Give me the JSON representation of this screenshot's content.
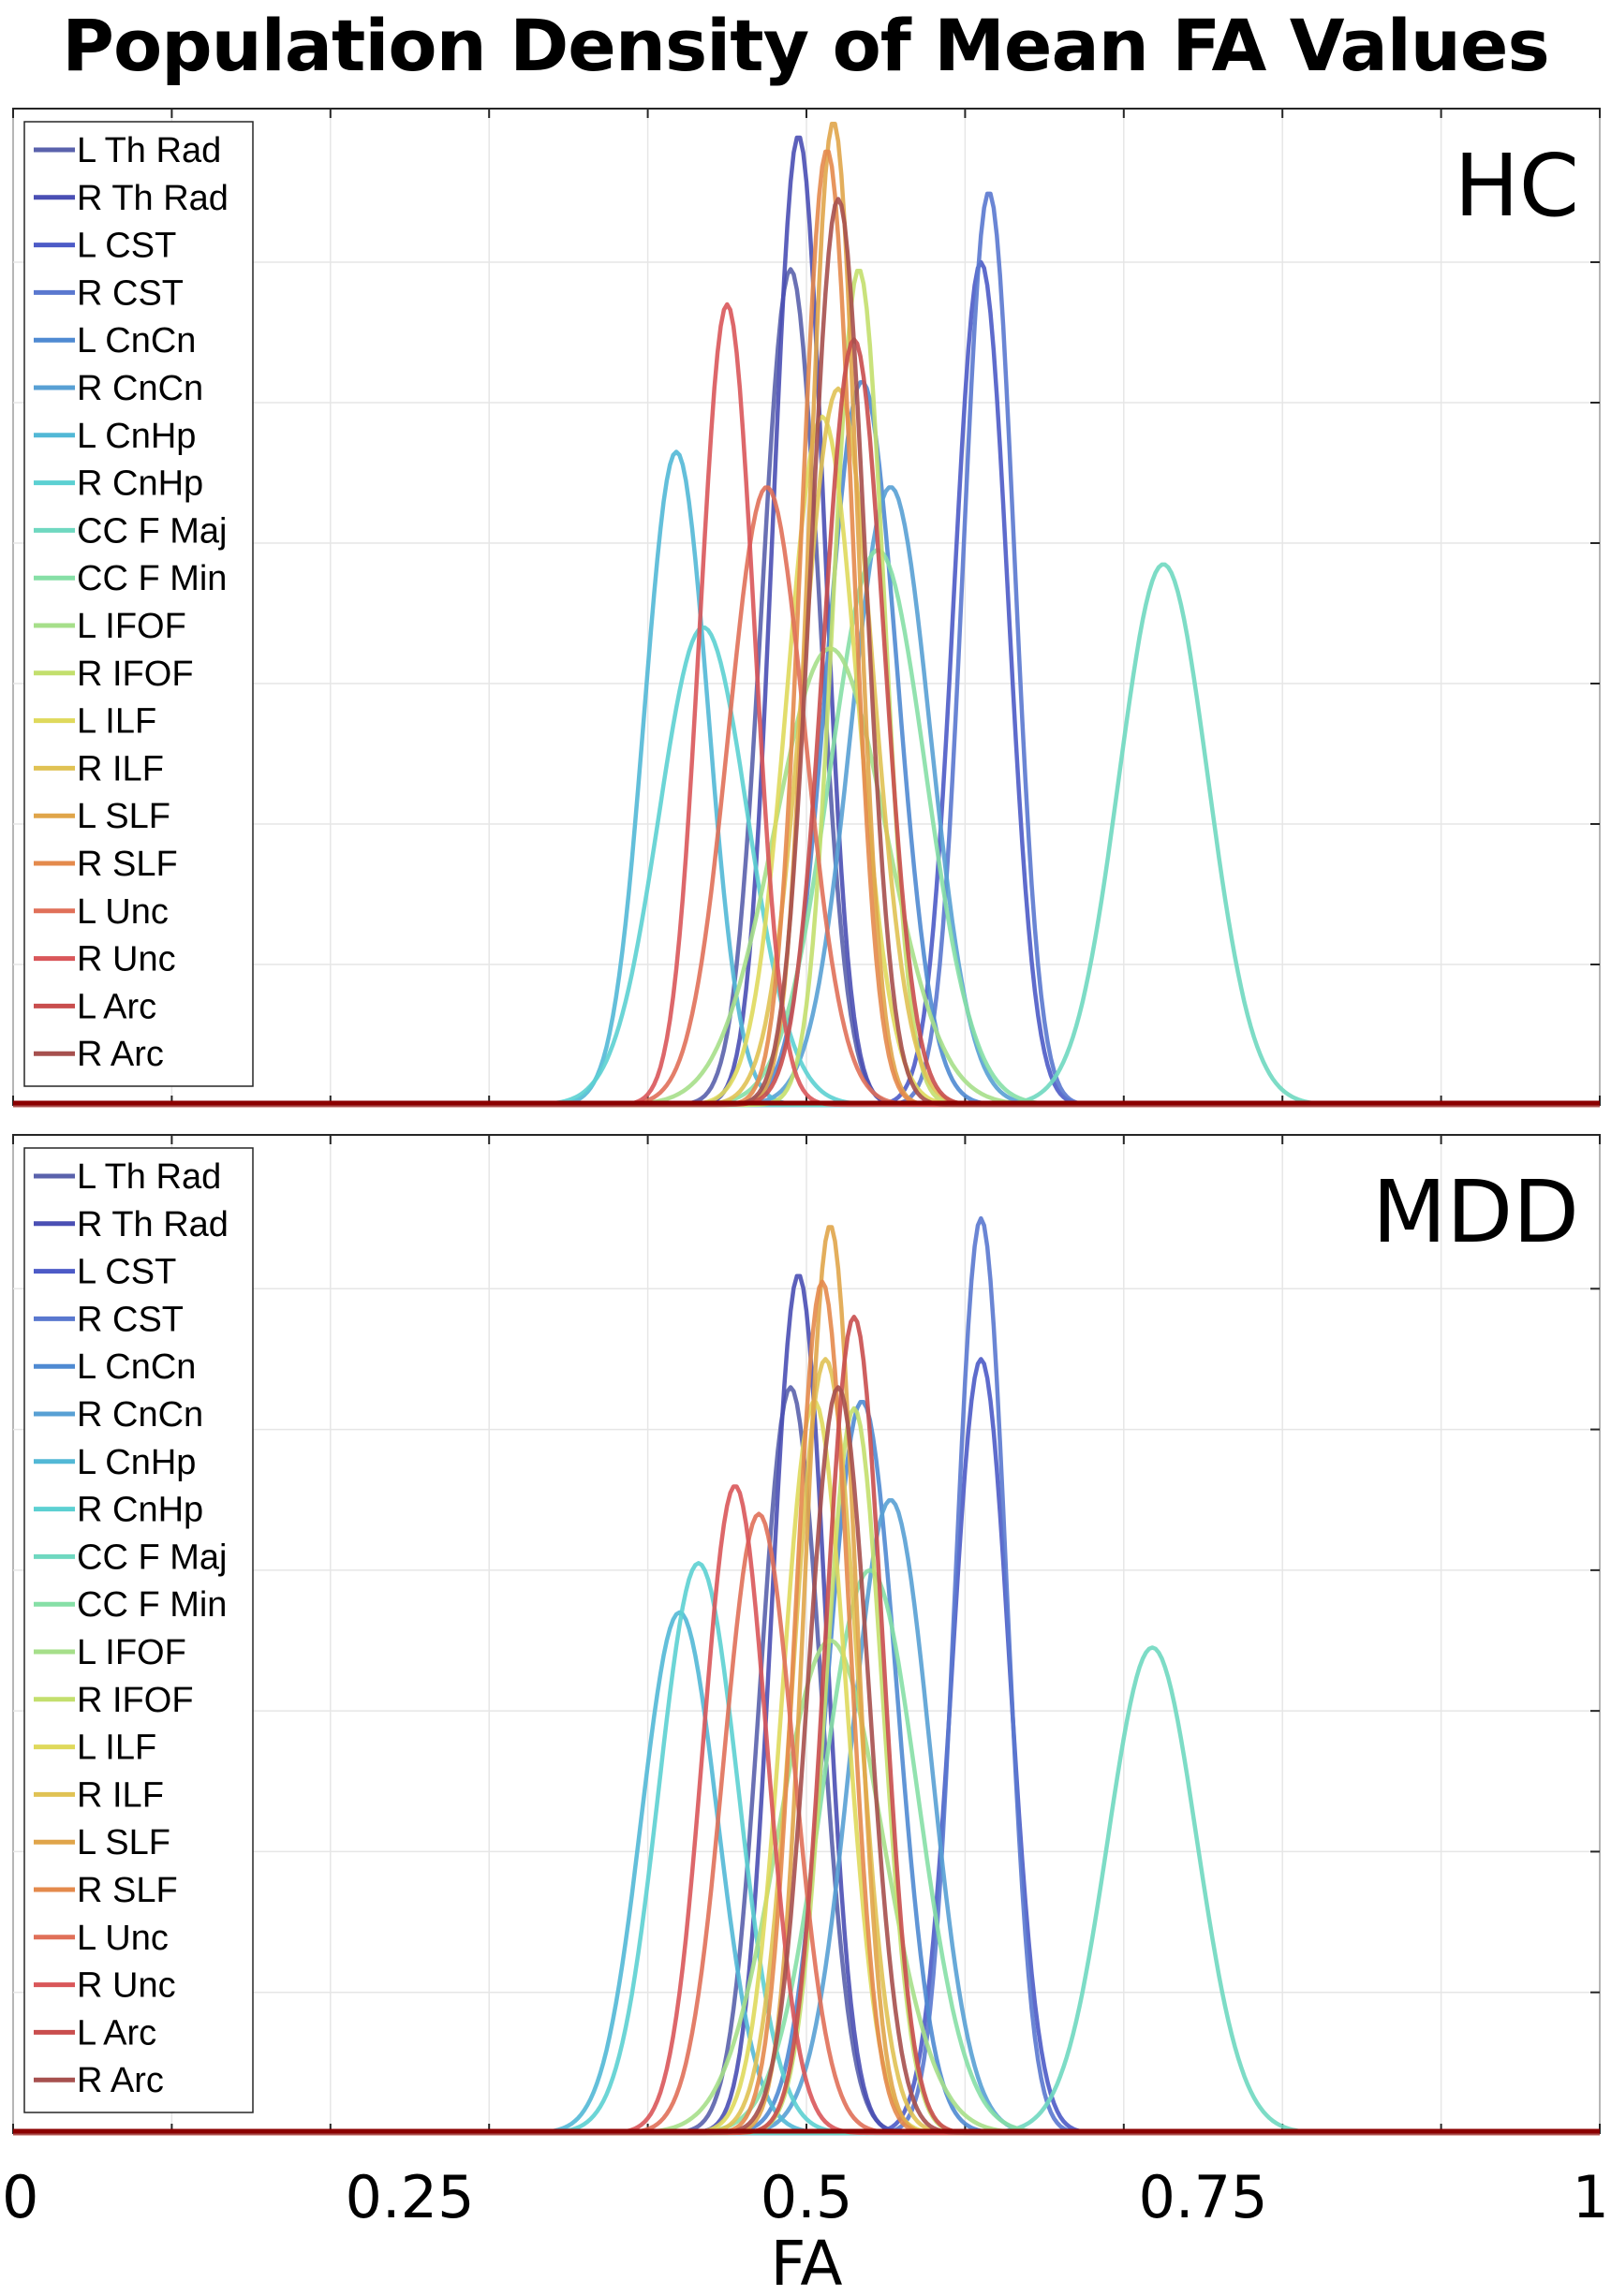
{
  "title": "Population Density of Mean FA Values",
  "chart_data": {
    "type": "line",
    "subtype": "kernel-density",
    "title": "Population Density of Mean FA Values",
    "xlabel": "FA",
    "ylabel": "",
    "xlim": [
      0,
      1
    ],
    "xticks": [
      0,
      0.25,
      0.5,
      0.75,
      1
    ],
    "xtick_labels": [
      "0",
      "0.25",
      "0.5",
      "0.75",
      "1"
    ],
    "grid": true,
    "legend_location": "upper-left",
    "baseline_color": "#8b0000",
    "series_colors": [
      "#5a62ac",
      "#4a4fb4",
      "#4d5bc7",
      "#5a78cf",
      "#4f8ad2",
      "#58a0d4",
      "#52b8d6",
      "#5cd0d2",
      "#6fd8c0",
      "#86dfa6",
      "#a6df8a",
      "#c3df6d",
      "#dfd95c",
      "#e0c254",
      "#e0a54a",
      "#e48a4c",
      "#e07059",
      "#d9575a",
      "#c94e4e",
      "#a6504e"
    ],
    "panels": [
      {
        "label": "HC",
        "ylim": [
          0,
          14
        ],
        "series": [
          {
            "name": "L Th Rad",
            "peak": 0.49,
            "peak_density": 11.9,
            "sd": 0.018
          },
          {
            "name": "R Th Rad",
            "peak": 0.495,
            "peak_density": 13.8,
            "sd": 0.016
          },
          {
            "name": "L CST",
            "peak": 0.61,
            "peak_density": 12.0,
            "sd": 0.017
          },
          {
            "name": "R CST",
            "peak": 0.615,
            "peak_density": 13.0,
            "sd": 0.016
          },
          {
            "name": "L CnCn",
            "peak": 0.535,
            "peak_density": 10.3,
            "sd": 0.022
          },
          {
            "name": "R CnCn",
            "peak": 0.553,
            "peak_density": 8.8,
            "sd": 0.025
          },
          {
            "name": "L CnHp",
            "peak": 0.418,
            "peak_density": 9.3,
            "sd": 0.02
          },
          {
            "name": "R CnHp",
            "peak": 0.435,
            "peak_density": 6.8,
            "sd": 0.028
          },
          {
            "name": "CC F Maj",
            "peak": 0.725,
            "peak_density": 7.7,
            "sd": 0.028
          },
          {
            "name": "CC F Min",
            "peak": 0.545,
            "peak_density": 7.9,
            "sd": 0.03
          },
          {
            "name": "L IFOF",
            "peak": 0.515,
            "peak_density": 6.5,
            "sd": 0.035
          },
          {
            "name": "R IFOF",
            "peak": 0.533,
            "peak_density": 11.9,
            "sd": 0.016
          },
          {
            "name": "L ILF",
            "peak": 0.51,
            "peak_density": 9.8,
            "sd": 0.022
          },
          {
            "name": "R ILF",
            "peak": 0.52,
            "peak_density": 10.2,
            "sd": 0.022
          },
          {
            "name": "L SLF",
            "peak": 0.517,
            "peak_density": 14.0,
            "sd": 0.015
          },
          {
            "name": "R SLF",
            "peak": 0.513,
            "peak_density": 13.6,
            "sd": 0.016
          },
          {
            "name": "L Unc",
            "peak": 0.475,
            "peak_density": 8.8,
            "sd": 0.024
          },
          {
            "name": "R Unc",
            "peak": 0.45,
            "peak_density": 11.4,
            "sd": 0.017
          },
          {
            "name": "L Arc",
            "peak": 0.53,
            "peak_density": 10.9,
            "sd": 0.019
          },
          {
            "name": "R Arc",
            "peak": 0.52,
            "peak_density": 12.9,
            "sd": 0.017
          }
        ]
      },
      {
        "label": "MDD",
        "ylim": [
          0,
          14
        ],
        "series": [
          {
            "name": "L Th Rad",
            "peak": 0.49,
            "peak_density": 10.6,
            "sd": 0.019
          },
          {
            "name": "R Th Rad",
            "peak": 0.495,
            "peak_density": 12.2,
            "sd": 0.017
          },
          {
            "name": "L CST",
            "peak": 0.61,
            "peak_density": 11.0,
            "sd": 0.018
          },
          {
            "name": "R CST",
            "peak": 0.61,
            "peak_density": 13.0,
            "sd": 0.016
          },
          {
            "name": "L CnCn",
            "peak": 0.535,
            "peak_density": 10.4,
            "sd": 0.022
          },
          {
            "name": "R CnCn",
            "peak": 0.553,
            "peak_density": 9.0,
            "sd": 0.025
          },
          {
            "name": "L CnHp",
            "peak": 0.42,
            "peak_density": 7.4,
            "sd": 0.024
          },
          {
            "name": "R CnHp",
            "peak": 0.432,
            "peak_density": 8.1,
            "sd": 0.025
          },
          {
            "name": "CC F Maj",
            "peak": 0.718,
            "peak_density": 6.9,
            "sd": 0.028
          },
          {
            "name": "CC F Min",
            "peak": 0.54,
            "peak_density": 8.0,
            "sd": 0.03
          },
          {
            "name": "L IFOF",
            "peak": 0.515,
            "peak_density": 7.0,
            "sd": 0.033
          },
          {
            "name": "R IFOF",
            "peak": 0.53,
            "peak_density": 10.3,
            "sd": 0.018
          },
          {
            "name": "L ILF",
            "peak": 0.505,
            "peak_density": 10.4,
            "sd": 0.02
          },
          {
            "name": "R ILF",
            "peak": 0.512,
            "peak_density": 11.0,
            "sd": 0.02
          },
          {
            "name": "L SLF",
            "peak": 0.515,
            "peak_density": 12.9,
            "sd": 0.016
          },
          {
            "name": "R SLF",
            "peak": 0.51,
            "peak_density": 12.1,
            "sd": 0.017
          },
          {
            "name": "L Unc",
            "peak": 0.47,
            "peak_density": 8.8,
            "sd": 0.022
          },
          {
            "name": "R Unc",
            "peak": 0.455,
            "peak_density": 9.2,
            "sd": 0.02
          },
          {
            "name": "L Arc",
            "peak": 0.53,
            "peak_density": 11.6,
            "sd": 0.018
          },
          {
            "name": "R Arc",
            "peak": 0.52,
            "peak_density": 10.6,
            "sd": 0.019
          }
        ]
      }
    ]
  }
}
